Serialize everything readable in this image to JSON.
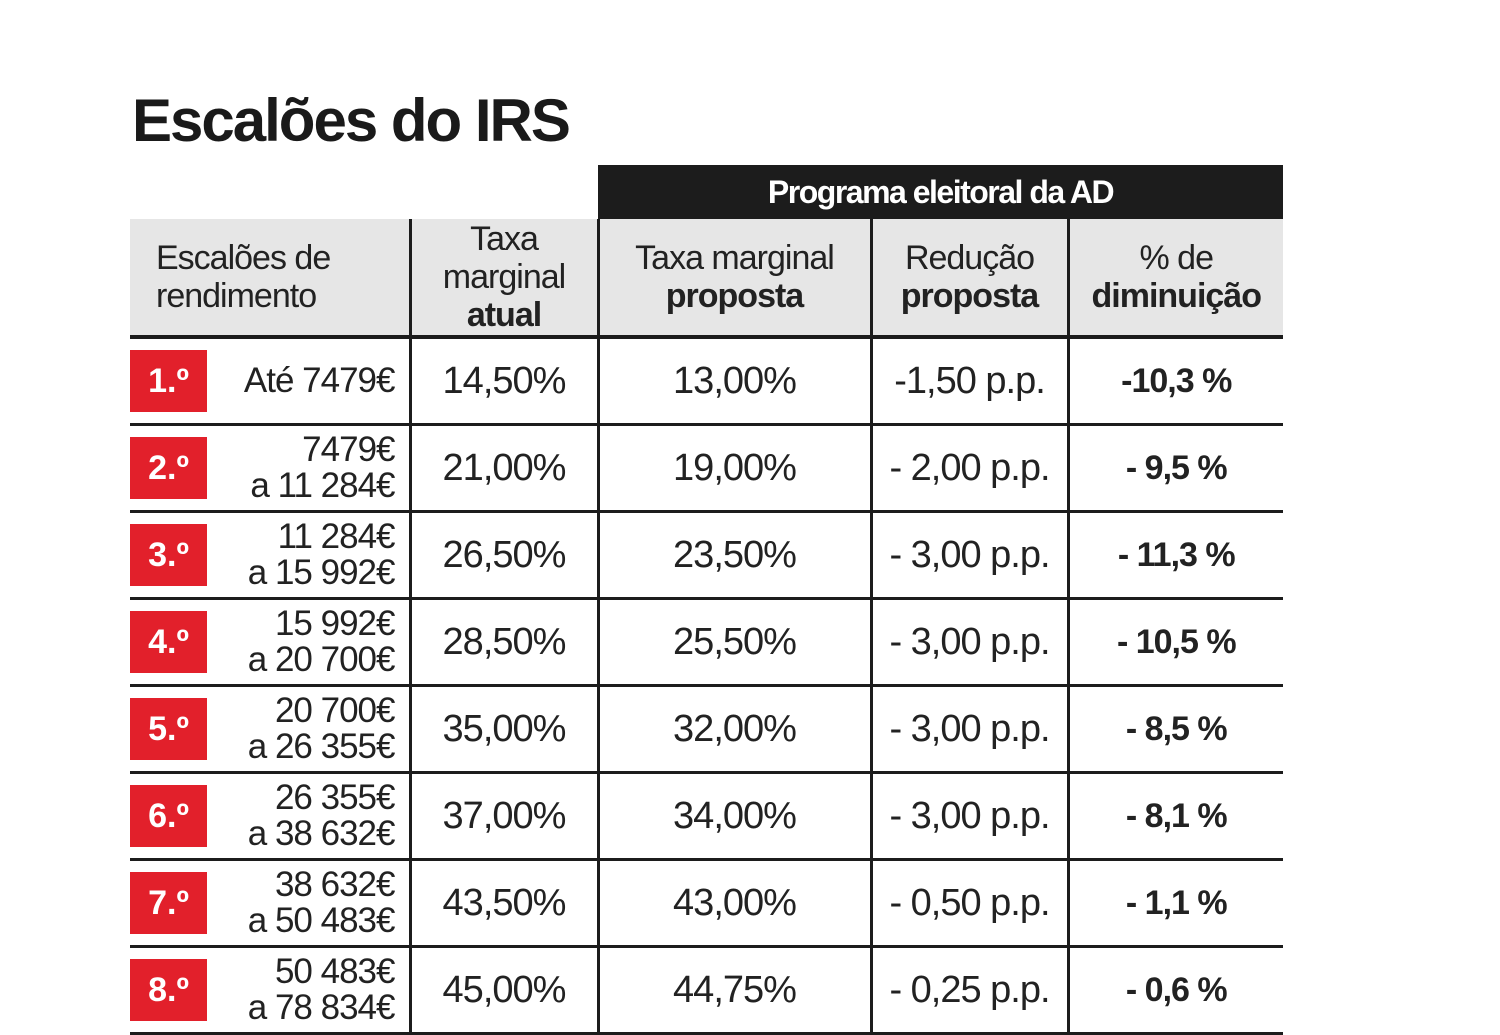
{
  "title": "Escalões do IRS",
  "table": {
    "group_header": "Programa eleitoral da AD",
    "headers": [
      {
        "light": "Escalões de rendimento"
      },
      {
        "light": "Taxa marginal",
        "bold": "atual"
      },
      {
        "light": "Taxa marginal",
        "bold": "proposta"
      },
      {
        "light": "Redução",
        "bold": "proposta"
      },
      {
        "light": "% de",
        "bold": "diminuição"
      }
    ],
    "rows": [
      {
        "badge": "1.º",
        "range": [
          "Até 7479€"
        ],
        "cells": [
          "14,50%",
          "13,00%",
          "-1,50 p.p.",
          "-10,3 %"
        ]
      },
      {
        "badge": "2.º",
        "range": [
          "7479€",
          "a 11 284€"
        ],
        "cells": [
          "21,00%",
          "19,00%",
          "- 2,00 p.p.",
          "- 9,5 %"
        ]
      },
      {
        "badge": "3.º",
        "range": [
          "11 284€",
          "a 15 992€"
        ],
        "cells": [
          "26,50%",
          "23,50%",
          "- 3,00 p.p.",
          "- 11,3 %"
        ]
      },
      {
        "badge": "4.º",
        "range": [
          "15 992€",
          "a 20 700€"
        ],
        "cells": [
          "28,50%",
          "25,50%",
          "- 3,00 p.p.",
          "- 10,5 %"
        ]
      },
      {
        "badge": "5.º",
        "range": [
          "20 700€",
          "a 26 355€"
        ],
        "cells": [
          "35,00%",
          "32,00%",
          "- 3,00 p.p.",
          "- 8,5 %"
        ]
      },
      {
        "badge": "6.º",
        "range": [
          "26 355€",
          "a 38 632€"
        ],
        "cells": [
          "37,00%",
          "34,00%",
          "- 3,00 p.p.",
          "- 8,1 %"
        ]
      },
      {
        "badge": "7.º",
        "range": [
          "38 632€",
          "a 50 483€"
        ],
        "cells": [
          "43,50%",
          "43,00%",
          "- 0,50 p.p.",
          "- 1,1 %"
        ]
      },
      {
        "badge": "8.º",
        "range": [
          "50 483€",
          "a 78 834€"
        ],
        "cells": [
          "45,00%",
          "44,75%",
          "- 0,25 p.p.",
          "- 0,6 %"
        ]
      }
    ]
  }
}
